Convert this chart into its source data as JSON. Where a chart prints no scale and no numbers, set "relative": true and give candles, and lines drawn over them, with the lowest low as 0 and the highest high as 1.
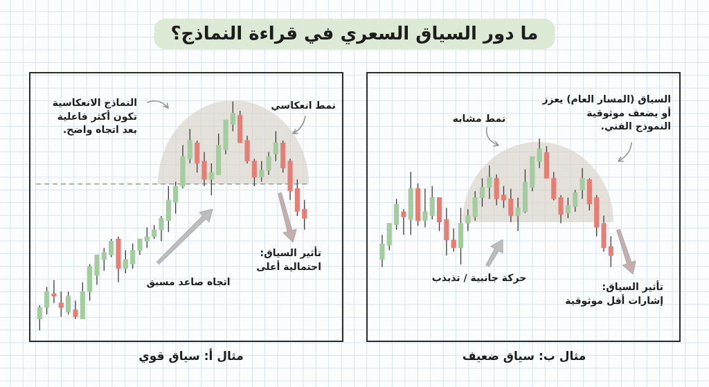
{
  "chart_data": [
    {
      "type": "candlestick",
      "title": "ما دور السياق السعري في قراءة النماذج؟",
      "xlabel": "مثال أ: سياق قوي",
      "relative": true,
      "tick_labels": false,
      "categories": [
        null,
        null,
        null,
        null,
        null,
        null,
        null,
        null,
        null,
        null,
        null,
        null,
        null,
        null,
        null,
        null,
        null,
        null,
        null,
        null,
        null,
        null,
        null,
        null,
        null,
        null,
        null,
        null,
        null,
        null,
        null,
        null,
        null,
        null,
        null,
        null,
        null,
        null
      ],
      "ohlc": [
        [
          0.05,
          0.11,
          0,
          0.1
        ],
        [
          0.1,
          0.19,
          0.07,
          0.17
        ],
        [
          0.16,
          0.22,
          0.12,
          0.15
        ],
        [
          0.12,
          0.17,
          0.06,
          0.1
        ],
        [
          0.08,
          0.17,
          0.07,
          0.15
        ],
        [
          0.09,
          0.13,
          0.05,
          0.06
        ],
        [
          0.05,
          0.21,
          0.05,
          0.17
        ],
        [
          0.17,
          0.29,
          0.13,
          0.28
        ],
        [
          0.24,
          0.33,
          0.2,
          0.33
        ],
        [
          0.31,
          0.36,
          0.26,
          0.34
        ],
        [
          0.33,
          0.4,
          0.32,
          0.39
        ],
        [
          0.4,
          0.41,
          0.21,
          0.27
        ],
        [
          0.27,
          0.35,
          0.25,
          0.31
        ],
        [
          0.29,
          0.38,
          0.27,
          0.35
        ],
        [
          0.35,
          0.4,
          0.33,
          0.4
        ],
        [
          0.39,
          0.45,
          0.36,
          0.41
        ],
        [
          0.41,
          0.46,
          0.4,
          0.44
        ],
        [
          0.44,
          0.5,
          0.39,
          0.49
        ],
        [
          0.48,
          0.63,
          0.43,
          0.57
        ],
        [
          0.56,
          0.65,
          0.51,
          0.63
        ],
        [
          0.63,
          0.81,
          0.62,
          0.76
        ],
        [
          0.75,
          0.88,
          0.73,
          0.83
        ],
        [
          0.82,
          0.83,
          0.69,
          0.73
        ],
        [
          0.74,
          0.78,
          0.63,
          0.66
        ],
        [
          0.66,
          0.73,
          0.59,
          0.69
        ],
        [
          0.68,
          0.86,
          0.68,
          0.81
        ],
        [
          0.79,
          0.92,
          0.77,
          0.92
        ],
        [
          0.9,
          1,
          0.87,
          0.95
        ],
        [
          0.94,
          0.96,
          0.82,
          0.82
        ],
        [
          0.83,
          0.85,
          0.73,
          0.74
        ],
        [
          0.74,
          0.75,
          0.63,
          0.67
        ],
        [
          0.67,
          0.74,
          0.65,
          0.7
        ],
        [
          0.7,
          0.78,
          0.68,
          0.76
        ],
        [
          0.77,
          0.87,
          0.74,
          0.82
        ],
        [
          0.82,
          0.83,
          0.69,
          0.71
        ],
        [
          0.74,
          0.75,
          0.57,
          0.61
        ],
        [
          0.62,
          0.66,
          0.5,
          0.52
        ],
        [
          0.53,
          0.57,
          0.44,
          0.49
        ]
      ],
      "colors": [
        "#a3cc9f",
        "#a3cc9f",
        "#e57f76",
        "#e57f76",
        "#a3cc9f",
        "#e57f76",
        "#a3cc9f",
        "#a3cc9f",
        "#a3cc9f",
        "#a3cc9f",
        "#a3cc9f",
        "#e57f76",
        "#a3cc9f",
        "#a3cc9f",
        "#a3cc9f",
        "#a3cc9f",
        "#a3cc9f",
        "#a3cc9f",
        "#a3cc9f",
        "#a3cc9f",
        "#a3cc9f",
        "#a3cc9f",
        "#e57f76",
        "#e57f76",
        "#a3cc9f",
        "#a3cc9f",
        "#a3cc9f",
        "#a3cc9f",
        "#e57f76",
        "#e57f76",
        "#e57f76",
        "#a3cc9f",
        "#a3cc9f",
        "#a3cc9f",
        "#e57f76",
        "#e57f76",
        "#e57f76",
        "#e57f76"
      ],
      "ref_lines": [
        {
          "axis": "y",
          "value": 0.64,
          "color": "#9a9a9a",
          "line_style": "dashed"
        }
      ],
      "annotations": [
        "النماذج الانعكاسية\nتكون أكثر فاعلية\nبعد اتجاه واضح.",
        "نمط انعكاسي",
        "اتجاه صاعد مسبق",
        "تأثير السياق:\nاحتمالية أعلى"
      ]
    },
    {
      "type": "candlestick",
      "xlabel": "مثال ب: سياق ضعيف",
      "relative": true,
      "tick_labels": false,
      "categories": [
        null,
        null,
        null,
        null,
        null,
        null,
        null,
        null,
        null,
        null,
        null,
        null,
        null,
        null,
        null,
        null,
        null,
        null,
        null,
        null,
        null,
        null,
        null,
        null,
        null,
        null,
        null,
        null,
        null,
        null,
        null,
        null,
        null
      ],
      "ohlc": [
        [
          0.06,
          0.25,
          0,
          0.18
        ],
        [
          0.17,
          0.34,
          0.13,
          0.34
        ],
        [
          0.33,
          0.53,
          0.29,
          0.49
        ],
        [
          0.43,
          0.45,
          0.25,
          0.39
        ],
        [
          0.37,
          0.74,
          0.25,
          0.61
        ],
        [
          0.61,
          0.65,
          0.32,
          0.36
        ],
        [
          0.36,
          0.61,
          0.31,
          0.43
        ],
        [
          0.4,
          0.63,
          0.37,
          0.54
        ],
        [
          0.54,
          0.54,
          0.28,
          0.35
        ],
        [
          0.37,
          0.46,
          0.09,
          0.21
        ],
        [
          0.21,
          0.3,
          0.12,
          0.15
        ],
        [
          0.15,
          0.46,
          0.02,
          0.34
        ],
        [
          0.34,
          0.45,
          0.28,
          0.4
        ],
        [
          0.39,
          0.59,
          0.36,
          0.54
        ],
        [
          0.54,
          0.69,
          0.47,
          0.62
        ],
        [
          0.62,
          0.79,
          0.53,
          0.7
        ],
        [
          0.69,
          0.72,
          0.48,
          0.53
        ],
        [
          0.56,
          0.63,
          0.46,
          0.52
        ],
        [
          0.53,
          0.61,
          0.35,
          0.4
        ],
        [
          0.4,
          0.54,
          0.28,
          0.46
        ],
        [
          0.43,
          0.76,
          0.42,
          0.66
        ],
        [
          0.62,
          0.86,
          0.59,
          0.86
        ],
        [
          0.82,
          1,
          0.77,
          0.92
        ],
        [
          0.89,
          0.94,
          0.69,
          0.69
        ],
        [
          0.69,
          0.74,
          0.52,
          0.53
        ],
        [
          0.54,
          0.56,
          0.34,
          0.41
        ],
        [
          0.42,
          0.54,
          0.38,
          0.48
        ],
        [
          0.47,
          0.6,
          0.43,
          0.58
        ],
        [
          0.6,
          0.77,
          0.53,
          0.69
        ],
        [
          0.68,
          0.69,
          0.44,
          0.49
        ],
        [
          0.54,
          0.56,
          0.24,
          0.31
        ],
        [
          0.34,
          0.4,
          0.12,
          0.15
        ],
        [
          0.16,
          0.24,
          0,
          0.09
        ]
      ],
      "colors": [
        "#a3cc9f",
        "#a3cc9f",
        "#a3cc9f",
        "#e57f76",
        "#a3cc9f",
        "#e57f76",
        "#a3cc9f",
        "#a3cc9f",
        "#e57f76",
        "#e57f76",
        "#e57f76",
        "#a3cc9f",
        "#a3cc9f",
        "#a3cc9f",
        "#a3cc9f",
        "#a3cc9f",
        "#e57f76",
        "#e57f76",
        "#e57f76",
        "#a3cc9f",
        "#a3cc9f",
        "#a3cc9f",
        "#a3cc9f",
        "#e57f76",
        "#e57f76",
        "#e57f76",
        "#a3cc9f",
        "#a3cc9f",
        "#a3cc9f",
        "#e57f76",
        "#e57f76",
        "#e57f76",
        "#e57f76"
      ],
      "annotations": [
        "السياق (المسار العام) يعزز\nأو يضعف موثوقية\nالنموذج الفني.",
        "نمط مشابه",
        "حركة جانبية / تذبذب",
        "تأثير السياق:\nإشارات أقل موثوقية"
      ]
    }
  ]
}
